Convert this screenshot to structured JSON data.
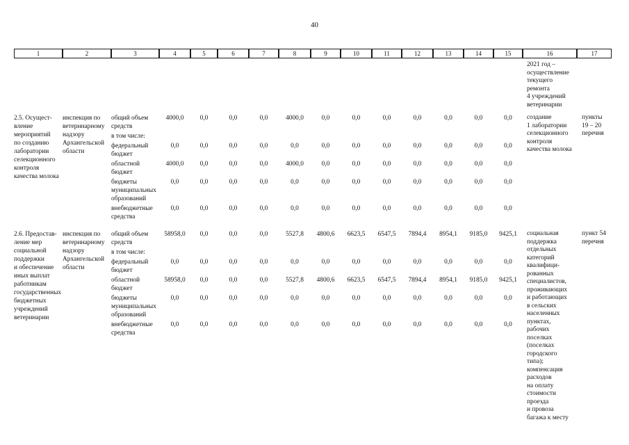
{
  "page": {
    "number": "40"
  },
  "table": {
    "header_cols": [
      "1",
      "2",
      "3",
      "4",
      "5",
      "6",
      "7",
      "8",
      "9",
      "10",
      "11",
      "12",
      "13",
      "14",
      "15",
      "16",
      "17"
    ],
    "continuation": {
      "expected_results": "2021 год –\nосуществление\nтекущего\nремонта\n4 учреждений\nветеринарии"
    },
    "items": [
      {
        "name": "2.5. Осущест-\nвление\nмероприятий\nпо созданию\nлаборатории\nселекционного\nконтроля\nкачества молока",
        "executor": "инспекция по\nветеринарному\nнадзору\nАрхангельской\nобласти",
        "budget_lines": [
          {
            "label": "общий объем\nсредств",
            "values": [
              "4000,0",
              "0,0",
              "0,0",
              "0,0",
              "4000,0",
              "0,0",
              "0,0",
              "0,0",
              "0,0",
              "0,0",
              "0,0",
              "0,0"
            ]
          },
          {
            "label": "в том числе:",
            "values": []
          },
          {
            "label": "федеральный\nбюджет",
            "values": [
              "0,0",
              "0,0",
              "0,0",
              "0,0",
              "0,0",
              "0,0",
              "0,0",
              "0,0",
              "0,0",
              "0,0",
              "0,0",
              "0,0"
            ]
          },
          {
            "label": "областной\nбюджет",
            "values": [
              "4000,0",
              "0,0",
              "0,0",
              "0,0",
              "4000,0",
              "0,0",
              "0,0",
              "0,0",
              "0,0",
              "0,0",
              "0,0",
              "0,0"
            ]
          },
          {
            "label": "бюджеты\nмуниципальных\nобразований",
            "values": [
              "0,0",
              "0,0",
              "0,0",
              "0,0",
              "0,0",
              "0,0",
              "0,0",
              "0,0",
              "0,0",
              "0,0",
              "0,0",
              "0,0"
            ]
          },
          {
            "label": "внебюджетные\nсредства",
            "values": [
              "0,0",
              "0,0",
              "0,0",
              "0,0",
              "0,0",
              "0,0",
              "0,0",
              "0,0",
              "0,0",
              "0,0",
              "0,0",
              "0,0"
            ]
          }
        ],
        "expected_results": "создание\n1 лаборатории\nселекционного\nконтроля\nкачества молока",
        "reference": "пункты\n19 – 20\nперечня"
      },
      {
        "name": "2.6. Предостав-\nление мер\nсоциальной\nподдержки\nи обеспечение\nиных выплат\nработникам\nгосударственных\nбюджетных\nучреждений\nветеринарии",
        "executor": "инспекция по\nветеринарному\nнадзору\nАрхангельской\nобласти",
        "budget_lines": [
          {
            "label": "общий объем\nсредств",
            "values": [
              "58958,0",
              "0,0",
              "0,0",
              "0,0",
              "5527,8",
              "4800,6",
              "6623,5",
              "6547,5",
              "7894,4",
              "8954,1",
              "9185,0",
              "9425,1"
            ]
          },
          {
            "label": "в том числе:",
            "values": []
          },
          {
            "label": "федеральный\nбюджет",
            "values": [
              "0,0",
              "0,0",
              "0,0",
              "0,0",
              "0,0",
              "0,0",
              "0,0",
              "0,0",
              "0,0",
              "0,0",
              "0,0",
              "0,0"
            ]
          },
          {
            "label": "областной\nбюджет",
            "values": [
              "58958,0",
              "0,0",
              "0,0",
              "0,0",
              "5527,8",
              "4800,6",
              "6623,5",
              "6547,5",
              "7894,4",
              "8954,1",
              "9185,0",
              "9425,1"
            ]
          },
          {
            "label": "бюджеты\nмуниципальных\nобразований",
            "values": [
              "0,0",
              "0,0",
              "0,0",
              "0,0",
              "0,0",
              "0,0",
              "0,0",
              "0,0",
              "0,0",
              "0,0",
              "0,0",
              "0,0"
            ]
          },
          {
            "label": "внебюджетные\nсредства",
            "values": [
              "0,0",
              "0,0",
              "0,0",
              "0,0",
              "0,0",
              "0,0",
              "0,0",
              "0,0",
              "0,0",
              "0,0",
              "0,0",
              "0,0"
            ]
          }
        ],
        "expected_results": "социальная\nподдержка\nотдельных\nкатегорий\nквалифици-\nрованных\nспециалистов,\nпроживающих\nи работающих\nв сельских\nнаселенных\nпунктах,\nрабочих\nпоселках\n(поселках\nгородского\nтипа);\nкомпенсация\nрасходов\nна оплату\nстоимости\nпроезда\nи провоза\nбагажа к месту",
        "reference": "пункт 54\nперечня"
      }
    ]
  }
}
